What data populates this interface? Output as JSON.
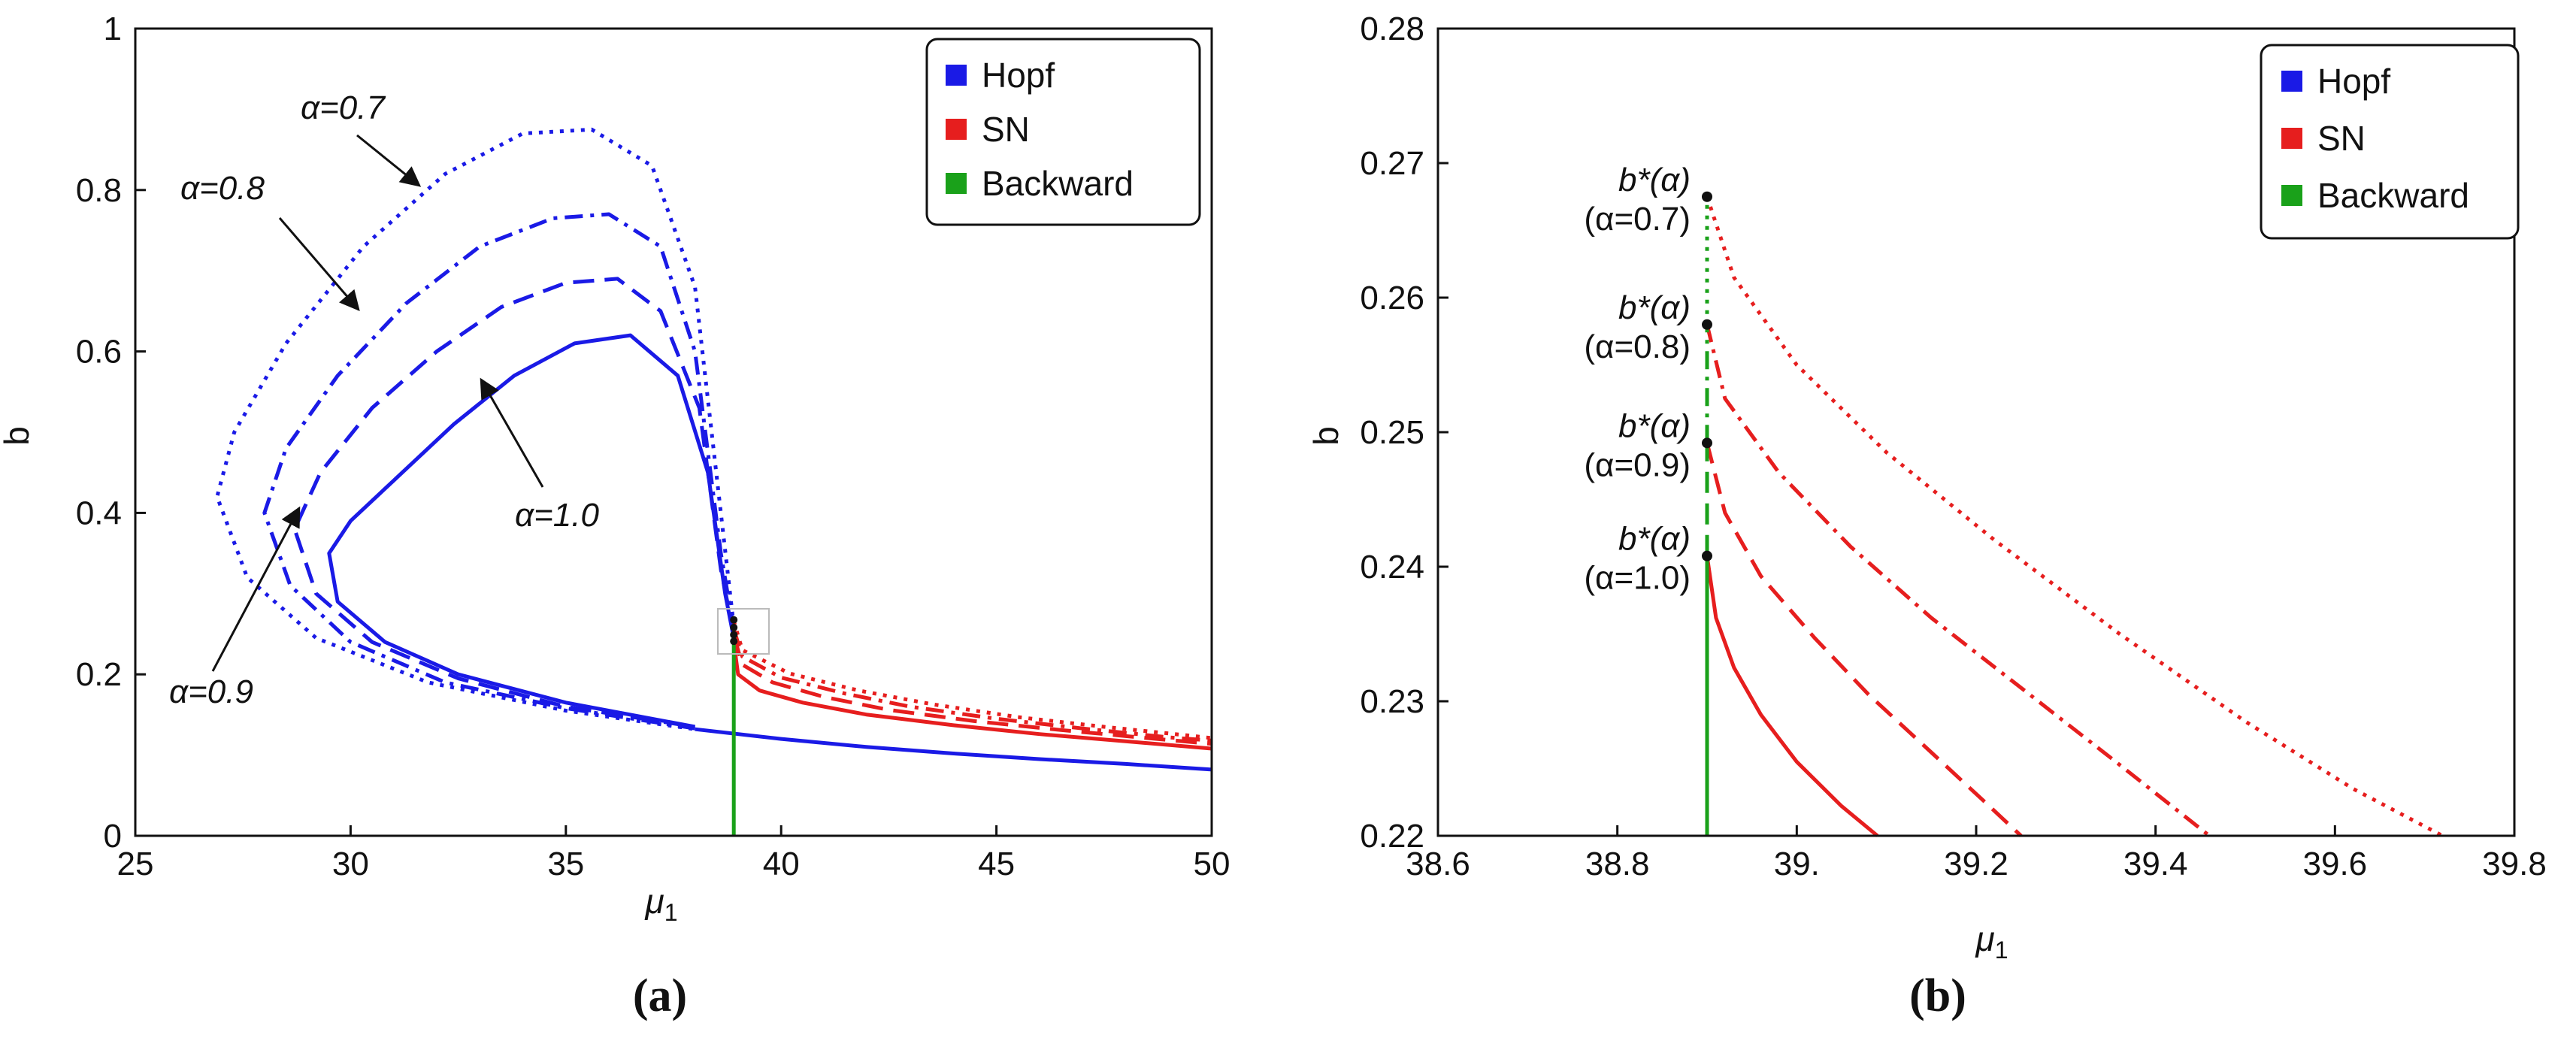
{
  "colors": {
    "hopf": "#1a1ae6",
    "sn": "#e61e1e",
    "backward": "#1aa11a",
    "axis": "#111111"
  },
  "chart_data": [
    {
      "panel": "a",
      "type": "line",
      "panel_label": "(a)",
      "xlabel": "μ",
      "xlabel_sub": "1",
      "ylabel": "b",
      "xlim": [
        25,
        50
      ],
      "ylim": [
        0,
        1
      ],
      "xticks": [
        25,
        30,
        35,
        40,
        45,
        50
      ],
      "yticks": [
        0,
        0.2,
        0.4,
        0.6,
        0.8,
        1
      ],
      "xtick_labels": [
        "25",
        "30",
        "35",
        "40",
        "45",
        "50"
      ],
      "ytick_labels": [
        "0",
        "0.2",
        "0.4",
        "0.6",
        "0.8",
        "1"
      ],
      "legend": {
        "placement": "top-right",
        "entries": [
          {
            "label": "Hopf",
            "color_key": "hopf"
          },
          {
            "label": "SN",
            "color_key": "sn"
          },
          {
            "label": "Backward",
            "color_key": "backward"
          }
        ]
      },
      "annotations": [
        "α=0.7",
        "α=0.8",
        "α=0.9",
        "α=1.0"
      ],
      "series": [
        {
          "name": "Hopf α=1.0 upper",
          "kind": "hopf",
          "dash": "solid",
          "x": [
            38.9,
            38.7,
            38.3,
            37.6,
            36.5,
            35.2,
            33.8,
            32.4,
            31.0,
            30.0,
            29.5,
            29.7,
            30.8,
            32.5,
            35.0,
            38.0
          ],
          "y": [
            0.245,
            0.3,
            0.45,
            0.57,
            0.62,
            0.61,
            0.57,
            0.51,
            0.44,
            0.39,
            0.35,
            0.29,
            0.24,
            0.2,
            0.165,
            0.135
          ]
        },
        {
          "name": "Hopf α=0.9 upper",
          "kind": "hopf",
          "dash": "dash",
          "x": [
            38.9,
            38.6,
            38.1,
            37.2,
            36.2,
            35.0,
            33.5,
            32.0,
            30.5,
            29.3,
            28.7,
            29.2,
            30.5,
            32.5,
            35.0,
            38.0
          ],
          "y": [
            0.25,
            0.33,
            0.53,
            0.65,
            0.69,
            0.685,
            0.655,
            0.6,
            0.53,
            0.45,
            0.38,
            0.3,
            0.24,
            0.195,
            0.16,
            0.135
          ]
        },
        {
          "name": "Hopf α=0.8 upper",
          "kind": "hopf",
          "dash": "dashdot",
          "x": [
            38.9,
            38.6,
            38.0,
            37.2,
            36.0,
            34.7,
            33.0,
            31.3,
            29.7,
            28.5,
            28.0,
            28.6,
            30.0,
            32.2,
            35.0,
            38.0
          ],
          "y": [
            0.255,
            0.35,
            0.6,
            0.73,
            0.77,
            0.765,
            0.73,
            0.66,
            0.57,
            0.48,
            0.4,
            0.31,
            0.24,
            0.19,
            0.158,
            0.133
          ]
        },
        {
          "name": "Hopf α=0.7 upper",
          "kind": "hopf",
          "dash": "dot",
          "x": [
            38.9,
            38.6,
            38.0,
            37.0,
            35.6,
            34.0,
            32.2,
            30.3,
            28.5,
            27.3,
            26.9,
            27.6,
            29.2,
            31.8,
            35.0,
            38.0
          ],
          "y": [
            0.26,
            0.4,
            0.68,
            0.83,
            0.875,
            0.87,
            0.82,
            0.73,
            0.61,
            0.5,
            0.42,
            0.32,
            0.245,
            0.19,
            0.155,
            0.132
          ]
        },
        {
          "name": "Hopf lower branch",
          "kind": "hopf",
          "dash": "solid",
          "x": [
            38.0,
            40.0,
            42.0,
            44.0,
            46.0,
            48.0,
            50.0
          ],
          "y": [
            0.132,
            0.12,
            0.11,
            0.102,
            0.095,
            0.089,
            0.082
          ]
        },
        {
          "name": "SN α=1.0",
          "kind": "sn",
          "dash": "solid",
          "x": [
            38.9,
            39.0,
            39.5,
            40.5,
            42.0,
            44.0,
            46.0,
            48.0,
            50.0
          ],
          "y": [
            0.24,
            0.2,
            0.18,
            0.165,
            0.15,
            0.137,
            0.126,
            0.117,
            0.108
          ]
        },
        {
          "name": "SN α=0.9",
          "kind": "sn",
          "dash": "dash",
          "x": [
            38.9,
            39.1,
            39.8,
            41.0,
            42.5,
            44.5,
            46.5,
            48.5,
            50.0
          ],
          "y": [
            0.248,
            0.212,
            0.19,
            0.172,
            0.156,
            0.142,
            0.131,
            0.121,
            0.114
          ]
        },
        {
          "name": "SN α=0.8",
          "kind": "sn",
          "dash": "dashdot",
          "x": [
            38.9,
            39.1,
            40.0,
            41.5,
            43.0,
            45.0,
            47.0,
            49.0,
            50.0
          ],
          "y": [
            0.256,
            0.222,
            0.196,
            0.176,
            0.16,
            0.145,
            0.133,
            0.122,
            0.118
          ]
        },
        {
          "name": "SN α=0.7",
          "kind": "sn",
          "dash": "dot",
          "x": [
            38.9,
            39.1,
            40.2,
            41.8,
            43.5,
            45.5,
            47.5,
            49.5,
            50.0
          ],
          "y": [
            0.266,
            0.23,
            0.201,
            0.18,
            0.163,
            0.147,
            0.135,
            0.124,
            0.121
          ]
        },
        {
          "name": "Backward",
          "kind": "backward",
          "dash": "solid",
          "x": [
            38.9,
            38.9
          ],
          "y": [
            0.0,
            0.245
          ]
        }
      ]
    },
    {
      "panel": "b",
      "type": "line",
      "panel_label": "(b)",
      "xlabel": "μ",
      "xlabel_sub": "1",
      "ylabel": "b",
      "xlim": [
        38.6,
        39.8
      ],
      "ylim": [
        0.22,
        0.28
      ],
      "xticks": [
        38.6,
        38.8,
        39.0,
        39.2,
        39.4,
        39.6,
        39.8
      ],
      "yticks": [
        0.22,
        0.23,
        0.24,
        0.25,
        0.26,
        0.27,
        0.28
      ],
      "xtick_labels": [
        "38.6",
        "38.8",
        "39.",
        "39.2",
        "39.4",
        "39.6",
        "39.8"
      ],
      "ytick_labels": [
        "0.22",
        "0.23",
        "0.24",
        "0.25",
        "0.26",
        "0.27",
        "0.28"
      ],
      "legend": {
        "placement": "top-right",
        "entries": [
          {
            "label": "Hopf",
            "color_key": "hopf"
          },
          {
            "label": "SN",
            "color_key": "sn"
          },
          {
            "label": "Backward",
            "color_key": "backward"
          }
        ]
      },
      "points": [
        {
          "label": "b*(α)",
          "alpha_label": "(α=0.7)",
          "x": 38.9,
          "y": 0.2675
        },
        {
          "label": "b*(α)",
          "alpha_label": "(α=0.8)",
          "x": 38.9,
          "y": 0.258
        },
        {
          "label": "b*(α)",
          "alpha_label": "(α=0.9)",
          "x": 38.9,
          "y": 0.2492
        },
        {
          "label": "b*(α)",
          "alpha_label": "(α=1.0)",
          "x": 38.9,
          "y": 0.2408
        }
      ],
      "series": [
        {
          "name": "SN α=1.0",
          "kind": "sn",
          "dash": "solid",
          "x": [
            38.9,
            38.91,
            38.93,
            38.96,
            39.0,
            39.05,
            39.09
          ],
          "y": [
            0.2408,
            0.2362,
            0.2325,
            0.229,
            0.2255,
            0.2222,
            0.22
          ]
        },
        {
          "name": "SN α=0.9",
          "kind": "sn",
          "dash": "dash",
          "x": [
            38.9,
            38.92,
            38.96,
            39.02,
            39.08,
            39.15,
            39.21,
            39.25
          ],
          "y": [
            0.2492,
            0.244,
            0.2393,
            0.2347,
            0.2305,
            0.2262,
            0.2225,
            0.22
          ]
        },
        {
          "name": "SN α=0.8",
          "kind": "sn",
          "dash": "dashdot",
          "x": [
            38.9,
            38.92,
            38.98,
            39.06,
            39.15,
            39.25,
            39.35,
            39.46
          ],
          "y": [
            0.258,
            0.2525,
            0.247,
            0.2415,
            0.2362,
            0.231,
            0.2258,
            0.22
          ]
        },
        {
          "name": "SN α=0.7",
          "kind": "sn",
          "dash": "dot",
          "x": [
            38.9,
            38.93,
            39.0,
            39.1,
            39.22,
            39.36,
            39.5,
            39.62,
            39.72
          ],
          "y": [
            0.2675,
            0.2615,
            0.255,
            0.2485,
            0.242,
            0.235,
            0.2285,
            0.2235,
            0.22
          ]
        },
        {
          "name": "Backward solid",
          "kind": "backward",
          "dash": "solid",
          "x": [
            38.9,
            38.9
          ],
          "y": [
            0.22,
            0.2408
          ]
        },
        {
          "name": "Backward dashed",
          "kind": "backward",
          "dash": "dash",
          "x": [
            38.9,
            38.9
          ],
          "y": [
            0.2408,
            0.2492
          ]
        },
        {
          "name": "Backward dashdot",
          "kind": "backward",
          "dash": "dashdot",
          "x": [
            38.9,
            38.9
          ],
          "y": [
            0.2492,
            0.258
          ]
        },
        {
          "name": "Backward dotted",
          "kind": "backward",
          "dash": "dot",
          "x": [
            38.9,
            38.9
          ],
          "y": [
            0.258,
            0.2675
          ]
        }
      ]
    }
  ]
}
